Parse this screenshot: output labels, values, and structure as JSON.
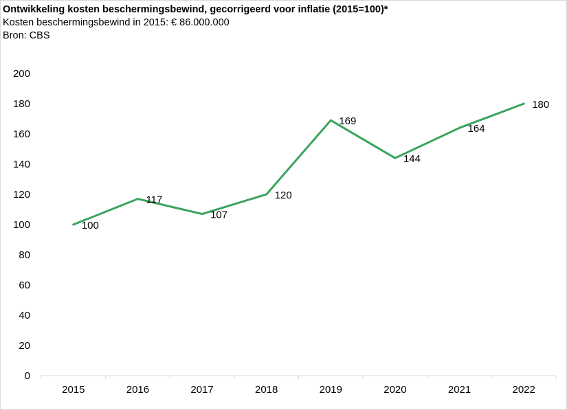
{
  "header": {
    "title": "Ontwikkeling kosten beschermingsbewind, gecorrigeerd voor inflatie (2015=100)*",
    "subtitle": "Kosten beschermingsbewind in 2015: € 86.000.000",
    "source": "Bron: CBS"
  },
  "chart_data": {
    "type": "line",
    "title": "Ontwikkeling kosten beschermingsbewind, gecorrigeerd voor inflatie (2015=100)*",
    "subtitle": "Kosten beschermingsbewind in 2015: € 86.000.000",
    "xlabel": "",
    "ylabel": "",
    "categories": [
      "2015",
      "2016",
      "2017",
      "2018",
      "2019",
      "2020",
      "2021",
      "2022"
    ],
    "series": [
      {
        "values": [
          100,
          117,
          107,
          120,
          169,
          144,
          164,
          180
        ],
        "labels": [
          "100",
          "117",
          "107",
          "120",
          "169",
          "144",
          "164",
          "180"
        ],
        "color": "#3aa35c"
      }
    ],
    "ylim": [
      0,
      200
    ],
    "yticks": [
      "0",
      "20",
      "40",
      "60",
      "80",
      "100",
      "120",
      "140",
      "160",
      "180",
      "200"
    ],
    "grid": false,
    "legend": "none"
  }
}
